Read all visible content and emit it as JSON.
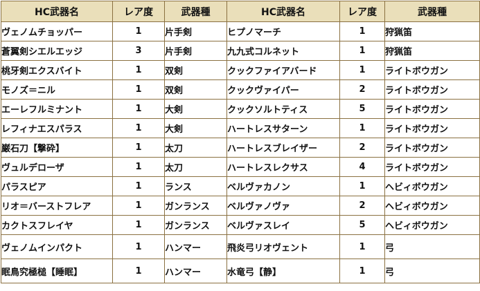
{
  "headers": [
    "HC武器名",
    "レア度",
    "武器種",
    "HC武器名",
    "レア度",
    "武器種"
  ],
  "rows": [
    {
      "left": {
        "name": "ヴェノムチョッパー",
        "rarity": "1",
        "type": "片手剣"
      },
      "right": {
        "name": "ヒプノマーチ",
        "rarity": "1",
        "type": "狩猟笛"
      }
    },
    {
      "left": {
        "name": "蒼翼剣シエルエッジ",
        "rarity": "3",
        "type": "片手剣"
      },
      "right": {
        "name": "九九式コルネット",
        "rarity": "1",
        "type": "狩猟笛"
      }
    },
    {
      "left": {
        "name": "桃牙剣エクスバイト",
        "rarity": "1",
        "type": "双剣"
      },
      "right": {
        "name": "クックファイアバード",
        "rarity": "1",
        "type": "ライトボウガン"
      }
    },
    {
      "left": {
        "name": "モノズ＝ニル",
        "rarity": "1",
        "type": "双剣"
      },
      "right": {
        "name": "クックヴァイパー",
        "rarity": "2",
        "type": "ライトボウガン"
      }
    },
    {
      "left": {
        "name": "エーレフルミナント",
        "rarity": "1",
        "type": "大剣"
      },
      "right": {
        "name": "クックソルトティス",
        "rarity": "5",
        "type": "ライトボウガン"
      }
    },
    {
      "left": {
        "name": "レフィナエスパラス",
        "rarity": "1",
        "type": "大剣"
      },
      "right": {
        "name": "ハートレスサターン",
        "rarity": "1",
        "type": "ライトボウガン"
      }
    },
    {
      "left": {
        "name": "巌石刀【撃砕】",
        "rarity": "1",
        "type": "太刀"
      },
      "right": {
        "name": "ハートレスブレイザー",
        "rarity": "2",
        "type": "ライトボウガン"
      }
    },
    {
      "left": {
        "name": "ヴュルデローザ",
        "rarity": "1",
        "type": "太刀"
      },
      "right": {
        "name": "ハートレスレクサス",
        "rarity": "4",
        "type": "ライトボウガン"
      }
    },
    {
      "left": {
        "name": "パラスピア",
        "rarity": "1",
        "type": "ランス"
      },
      "right": {
        "name": "ベルヴァカノン",
        "rarity": "1",
        "type": "ヘビィボウガン"
      }
    },
    {
      "left": {
        "name": "リオ＝バーストフレア",
        "rarity": "1",
        "type": "ガンランス"
      },
      "right": {
        "name": "ベルヴァノヴァ",
        "rarity": "2",
        "type": "ヘビィボウガン"
      }
    },
    {
      "left": {
        "name": "カクトスフレイヤ",
        "rarity": "1",
        "type": "ガンランス"
      },
      "right": {
        "name": "ベルヴァスレイ",
        "rarity": "5",
        "type": "ヘビィボウガン"
      }
    },
    {
      "left": {
        "name": "ヴェノムインパクト",
        "rarity": "1",
        "type": "ハンマー"
      },
      "right": {
        "name": "飛炎弓リオヴェント",
        "rarity": "1",
        "type": "弓"
      }
    },
    {
      "left": {
        "name": "眠鳥究極槌【睡眠】",
        "rarity": "1",
        "type": "ハンマー"
      },
      "right": {
        "name": "水竜弓【静】",
        "rarity": "1",
        "type": "弓"
      }
    }
  ]
}
